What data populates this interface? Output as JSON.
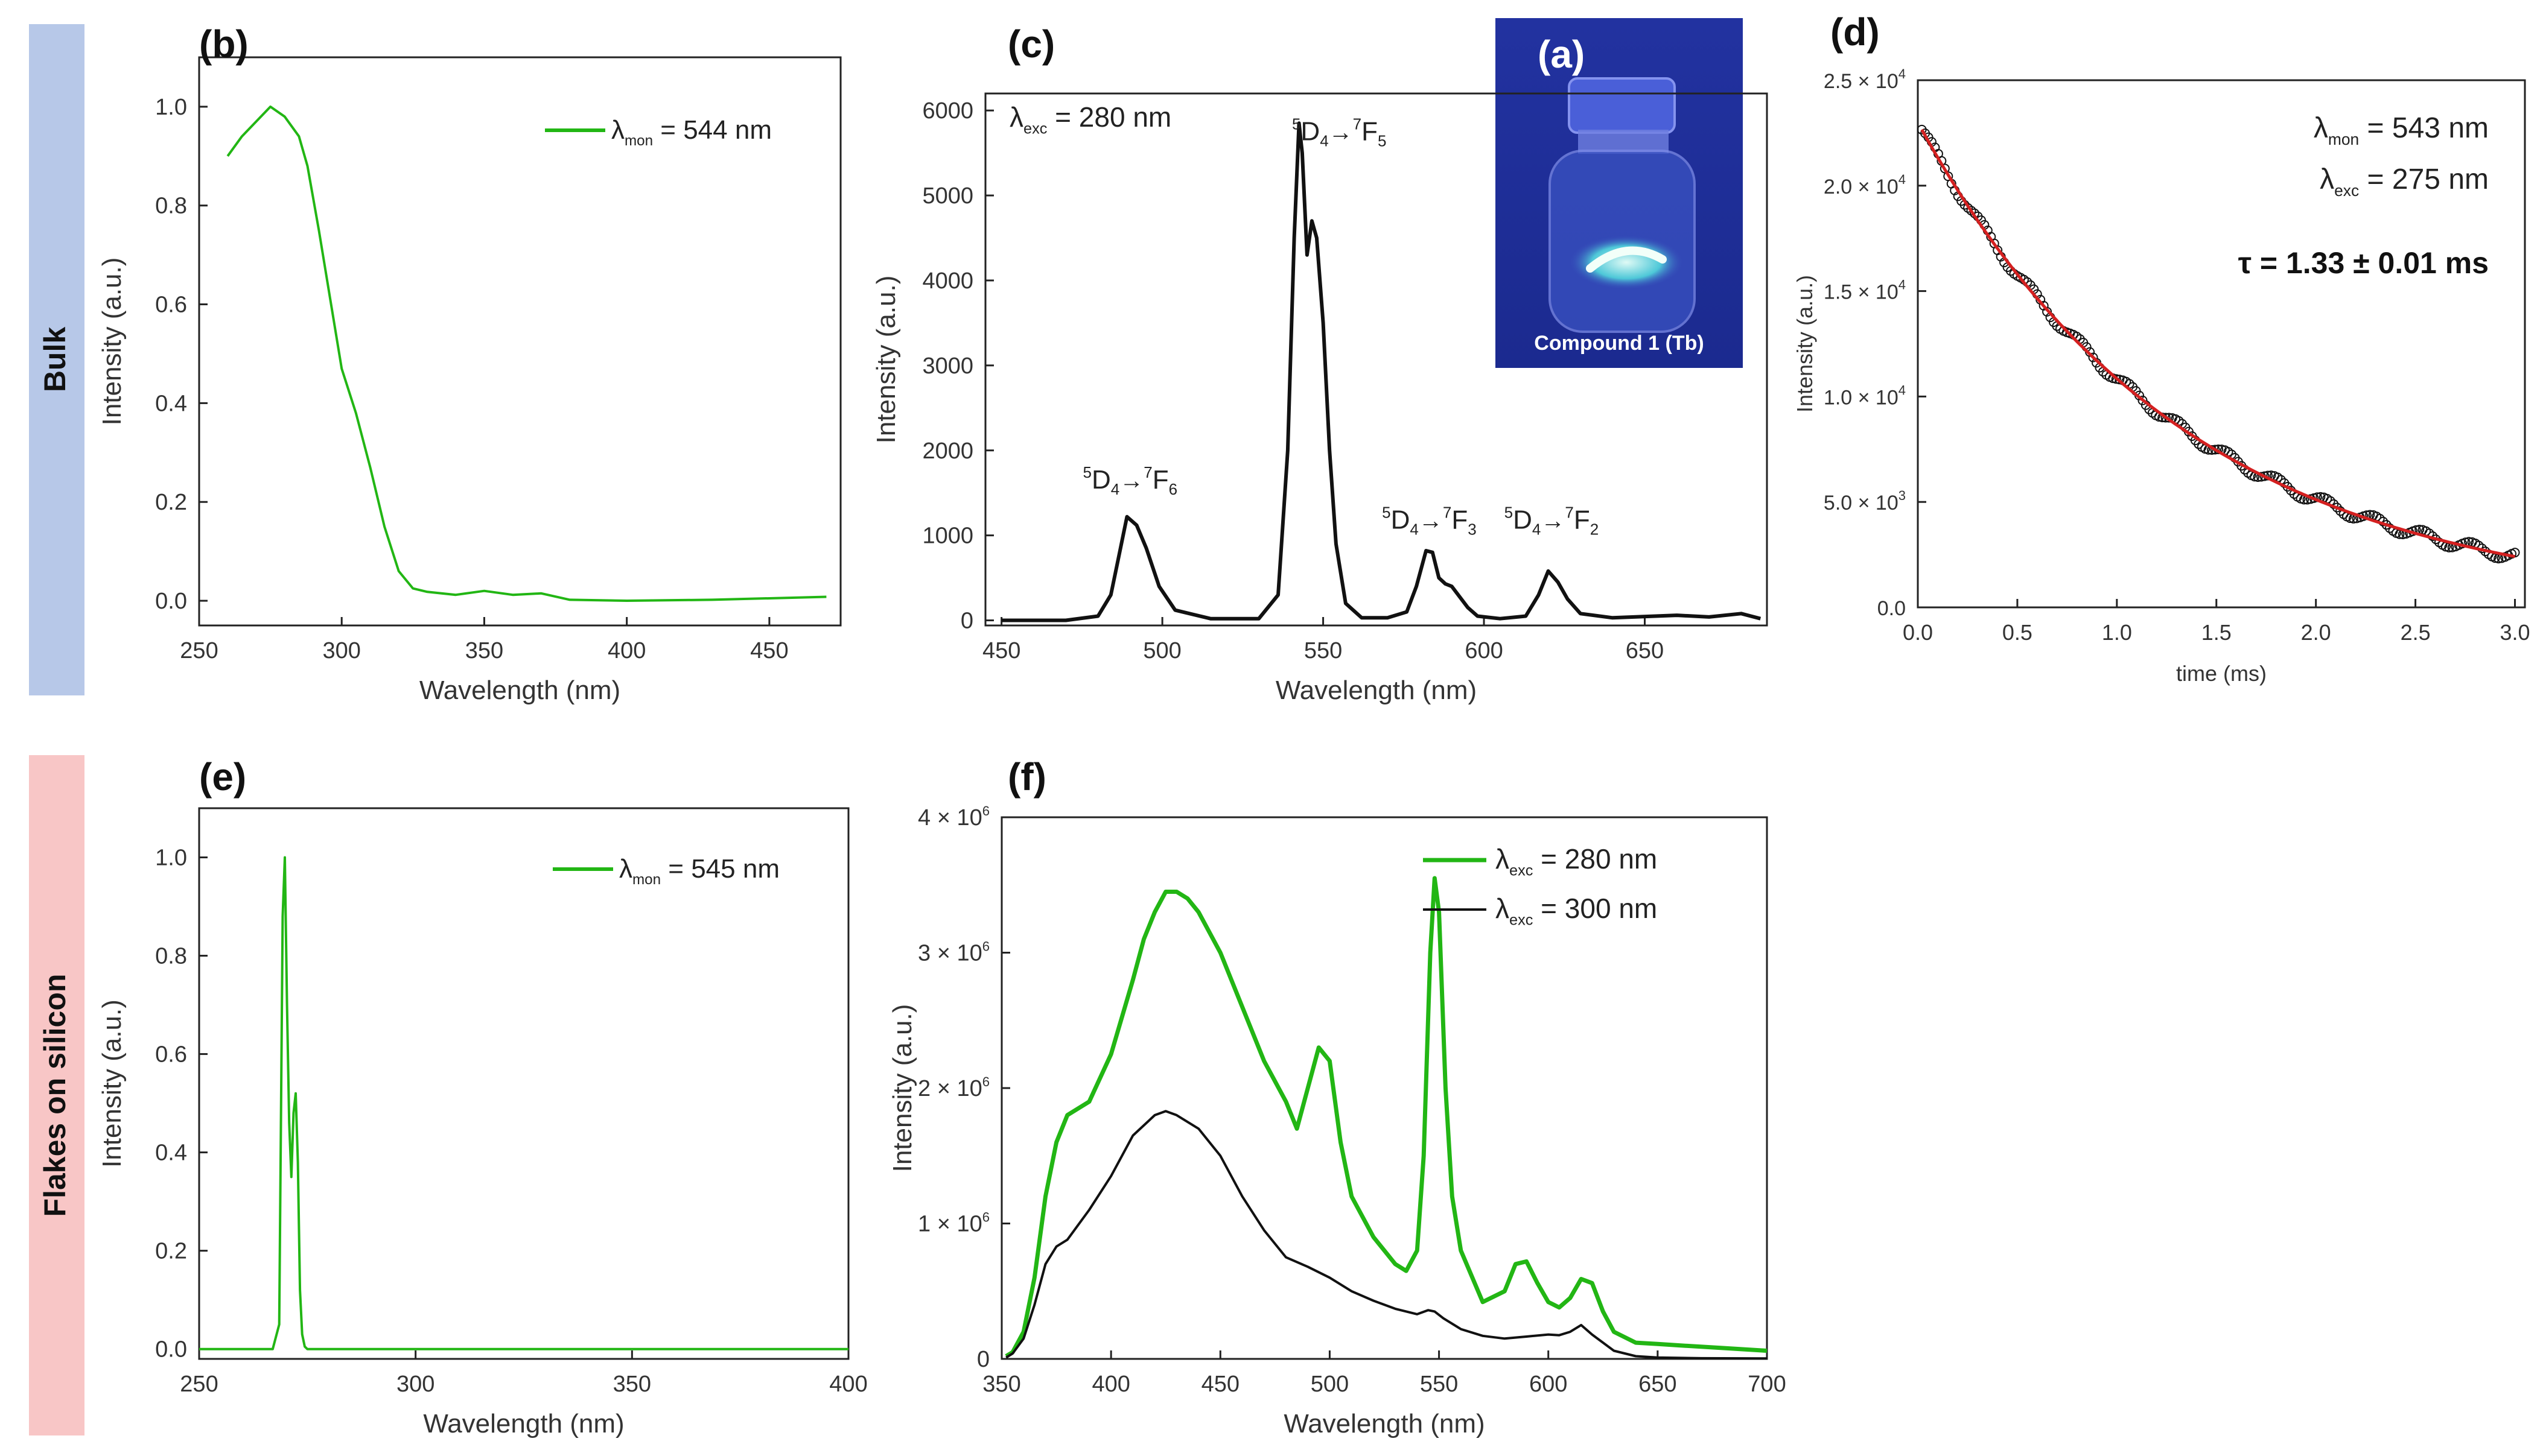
{
  "colors": {
    "green": "#22b614",
    "black": "#111111",
    "red": "#d42020",
    "bulk_band": "#b7c8e8",
    "flakes_band": "#f8c6c6",
    "photo_bg": "#2c3ba8"
  },
  "row_labels": {
    "bulk": "Bulk",
    "flakes": "Flakes on silicon"
  },
  "photo": {
    "panel_label": "(a)",
    "caption": "Compound 1 (Tb)"
  },
  "chart_data": [
    {
      "id": "b",
      "type": "line",
      "panel_label": "(b)",
      "xlabel": "Wavelength (nm)",
      "ylabel": "Intensity (a.u.)",
      "xlim": [
        250,
        475
      ],
      "ylim": [
        -0.05,
        1.1
      ],
      "xticks": [
        250,
        300,
        350,
        400,
        450
      ],
      "yticks": [
        0.0,
        0.2,
        0.4,
        0.6,
        0.8,
        1.0
      ],
      "ytick_labels": [
        "0.0",
        "0.2",
        "0.4",
        "0.6",
        "0.8",
        "1.0"
      ],
      "legend": {
        "symbol": "λ",
        "sub": "mon",
        "rest": " = 544 nm",
        "position": "top-right"
      },
      "series": [
        {
          "name": "λmon = 544 nm",
          "color": "#22b614",
          "x": [
            260,
            265,
            270,
            275,
            280,
            285,
            288,
            292,
            296,
            300,
            305,
            310,
            315,
            320,
            325,
            330,
            335,
            340,
            350,
            360,
            370,
            380,
            400,
            430,
            470
          ],
          "y": [
            0.9,
            0.94,
            0.97,
            1.0,
            0.98,
            0.94,
            0.88,
            0.75,
            0.61,
            0.47,
            0.38,
            0.27,
            0.15,
            0.06,
            0.025,
            0.018,
            0.015,
            0.012,
            0.02,
            0.012,
            0.015,
            0.002,
            0.0,
            0.002,
            0.008
          ]
        }
      ]
    },
    {
      "id": "c",
      "type": "line",
      "panel_label": "(c)",
      "xlabel": "Wavelength (nm)",
      "ylabel": "Intensity (a.u.)",
      "xlim": [
        445,
        688
      ],
      "ylim": [
        -60,
        6200
      ],
      "xticks": [
        450,
        500,
        550,
        600,
        650
      ],
      "yticks": [
        0,
        1000,
        2000,
        3000,
        4000,
        5000,
        6000
      ],
      "ytick_labels": [
        "0",
        "1000",
        "2000",
        "3000",
        "4000",
        "5000",
        "6000"
      ],
      "text_annotation": {
        "symbol": "λ",
        "sub": "exc",
        "rest": " = 280 nm"
      },
      "peak_labels": [
        {
          "x": 490,
          "y": 1550,
          "sup1": "5",
          "d": "D",
          "sub1": "4",
          "arrow": "→",
          "sup2": "7",
          "f": "F",
          "sub2": "6"
        },
        {
          "x": 555,
          "y": 5650,
          "sup1": "5",
          "d": "D",
          "sub1": "4",
          "arrow": "→",
          "sup2": "7",
          "f": "F",
          "sub2": "5"
        },
        {
          "x": 583,
          "y": 1080,
          "sup1": "5",
          "d": "D",
          "sub1": "4",
          "arrow": "→",
          "sup2": "7",
          "f": "F",
          "sub2": "3"
        },
        {
          "x": 621,
          "y": 1080,
          "sup1": "5",
          "d": "D",
          "sub1": "4",
          "arrow": "→",
          "sup2": "7",
          "f": "F",
          "sub2": "2"
        }
      ],
      "series": [
        {
          "name": "emission",
          "color": "#111111",
          "x": [
            450,
            470,
            480,
            484,
            487,
            489,
            492,
            495,
            499,
            504,
            515,
            530,
            536,
            539,
            541,
            542.5,
            543.5,
            545,
            546.5,
            548,
            550,
            552,
            554,
            557,
            562,
            570,
            576,
            579,
            582,
            584,
            586,
            588,
            590,
            592,
            595,
            598,
            605,
            613,
            617,
            620,
            623,
            626,
            630,
            640,
            660,
            670,
            680,
            686
          ],
          "y": [
            0,
            0,
            50,
            300,
            850,
            1220,
            1120,
            850,
            400,
            120,
            20,
            20,
            300,
            2000,
            4500,
            5850,
            5500,
            4300,
            4700,
            4500,
            3500,
            2000,
            900,
            200,
            30,
            30,
            100,
            400,
            820,
            800,
            500,
            430,
            400,
            300,
            150,
            50,
            20,
            50,
            300,
            580,
            450,
            250,
            80,
            30,
            60,
            40,
            80,
            20
          ]
        }
      ]
    },
    {
      "id": "d",
      "type": "scatter",
      "panel_label": "(d)",
      "xlabel": "time (ms)",
      "ylabel": "Intensity (a.u.)",
      "xlim": [
        0,
        3.05
      ],
      "ylim": [
        0,
        25000
      ],
      "xticks": [
        0.0,
        0.5,
        1.0,
        1.5,
        2.0,
        2.5,
        3.0
      ],
      "xtick_labels": [
        "0.0",
        "0.5",
        "1.0",
        "1.5",
        "2.0",
        "2.5",
        "3.0"
      ],
      "yticks": [
        0,
        5000,
        10000,
        15000,
        20000,
        25000
      ],
      "ytick_labels": [
        {
          "mant": "0.0",
          "exp": ""
        },
        {
          "mant": "5.0 × 10",
          "exp": "3"
        },
        {
          "mant": "1.0 × 10",
          "exp": "4"
        },
        {
          "mant": "1.5 × 10",
          "exp": "4"
        },
        {
          "mant": "2.0 × 10",
          "exp": "4"
        },
        {
          "mant": "2.5 × 10",
          "exp": "4"
        }
      ],
      "text_annotations": [
        {
          "symbol": "λ",
          "sub": "mon",
          "rest": " = 543 nm"
        },
        {
          "symbol": "λ",
          "sub": "exc",
          "rest": " = 275 nm"
        }
      ],
      "tau_label": "τ = 1.33 ± 0.01 ms",
      "decay": {
        "amplitude": 23000,
        "tau_ms": 1.33,
        "offset": 0,
        "t_start": 0.02,
        "t_end": 3.0
      },
      "series": [
        {
          "name": "data",
          "marker": "open-circle",
          "color": "#111111"
        },
        {
          "name": "fit",
          "color": "#d42020"
        }
      ]
    },
    {
      "id": "e",
      "type": "line",
      "panel_label": "(e)",
      "xlabel": "Wavelength (nm)",
      "ylabel": "Intensity (a.u.)",
      "xlim": [
        250,
        400
      ],
      "ylim": [
        -0.02,
        1.1
      ],
      "xticks": [
        250,
        300,
        350,
        400
      ],
      "yticks": [
        0.0,
        0.2,
        0.4,
        0.6,
        0.8,
        1.0
      ],
      "ytick_labels": [
        "0.0",
        "0.2",
        "0.4",
        "0.6",
        "0.8",
        "1.0"
      ],
      "legend": {
        "symbol": "λ",
        "sub": "mon",
        "rest": " = 545 nm",
        "position": "top-right"
      },
      "series": [
        {
          "name": "λmon = 545 nm",
          "color": "#22b614",
          "x": [
            250,
            267,
            268.5,
            269.3,
            269.8,
            270.3,
            270.8,
            271.3,
            271.8,
            272.3,
            272.8,
            273.3,
            273.8,
            274.4,
            275,
            280,
            400
          ],
          "y": [
            0,
            0,
            0.05,
            0.88,
            1.0,
            0.7,
            0.46,
            0.35,
            0.48,
            0.52,
            0.38,
            0.12,
            0.03,
            0.005,
            0,
            0,
            0
          ]
        }
      ]
    },
    {
      "id": "f",
      "type": "line",
      "panel_label": "(f)",
      "xlabel": "Wavelength (nm)",
      "ylabel": "Intensity (a.u.)",
      "xlim": [
        350,
        700
      ],
      "ylim": [
        0,
        4000000
      ],
      "xticks": [
        350,
        400,
        450,
        500,
        550,
        600,
        650,
        700
      ],
      "yticks": [
        0,
        1000000,
        2000000,
        3000000,
        4000000
      ],
      "ytick_labels": [
        {
          "mant": "0",
          "exp": ""
        },
        {
          "mant": "1 × 10",
          "exp": "6"
        },
        {
          "mant": "2 × 10",
          "exp": "6"
        },
        {
          "mant": "3 × 10",
          "exp": "6"
        },
        {
          "mant": "4 × 10",
          "exp": "6"
        }
      ],
      "legend": [
        {
          "symbol": "λ",
          "sub": "exc",
          "rest": " = 280 nm",
          "color": "#22b614"
        },
        {
          "symbol": "λ",
          "sub": "exc",
          "rest": " = 300 nm",
          "color": "#111111"
        }
      ],
      "series": [
        {
          "name": "λexc = 280 nm",
          "color": "#22b614",
          "x": [
            352,
            355,
            360,
            365,
            370,
            375,
            380,
            390,
            400,
            410,
            415,
            420,
            425,
            430,
            435,
            440,
            450,
            460,
            470,
            480,
            485,
            490,
            495,
            500,
            505,
            510,
            520,
            530,
            535,
            540,
            543,
            546,
            548,
            550,
            553,
            556,
            560,
            570,
            580,
            585,
            590,
            595,
            600,
            605,
            610,
            615,
            620,
            625,
            630,
            640,
            650,
            660,
            680,
            700
          ],
          "y": [
            20000,
            50000,
            200000,
            600000,
            1200000,
            1600000,
            1800000,
            1900000,
            2250000,
            2800000,
            3100000,
            3300000,
            3450000,
            3450000,
            3400000,
            3300000,
            3000000,
            2600000,
            2200000,
            1900000,
            1700000,
            2000000,
            2300000,
            2200000,
            1600000,
            1200000,
            900000,
            700000,
            650000,
            800000,
            1500000,
            3000000,
            3550000,
            3300000,
            2000000,
            1200000,
            800000,
            420000,
            500000,
            700000,
            720000,
            560000,
            420000,
            380000,
            450000,
            590000,
            560000,
            350000,
            200000,
            120000,
            110000,
            100000,
            80000,
            60000
          ]
        },
        {
          "name": "λexc = 300 nm",
          "color": "#111111",
          "x": [
            352,
            355,
            360,
            365,
            370,
            375,
            380,
            390,
            400,
            410,
            420,
            425,
            430,
            440,
            450,
            460,
            470,
            480,
            490,
            500,
            510,
            520,
            530,
            540,
            545,
            548,
            552,
            560,
            570,
            580,
            590,
            600,
            605,
            610,
            615,
            620,
            630,
            640,
            650,
            670,
            700
          ],
          "y": [
            10000,
            40000,
            150000,
            400000,
            700000,
            830000,
            880000,
            1100000,
            1350000,
            1650000,
            1800000,
            1830000,
            1800000,
            1700000,
            1500000,
            1200000,
            950000,
            750000,
            680000,
            600000,
            500000,
            430000,
            370000,
            330000,
            360000,
            350000,
            300000,
            220000,
            170000,
            150000,
            165000,
            180000,
            175000,
            200000,
            250000,
            180000,
            60000,
            20000,
            10000,
            5000,
            3000
          ]
        }
      ]
    }
  ]
}
